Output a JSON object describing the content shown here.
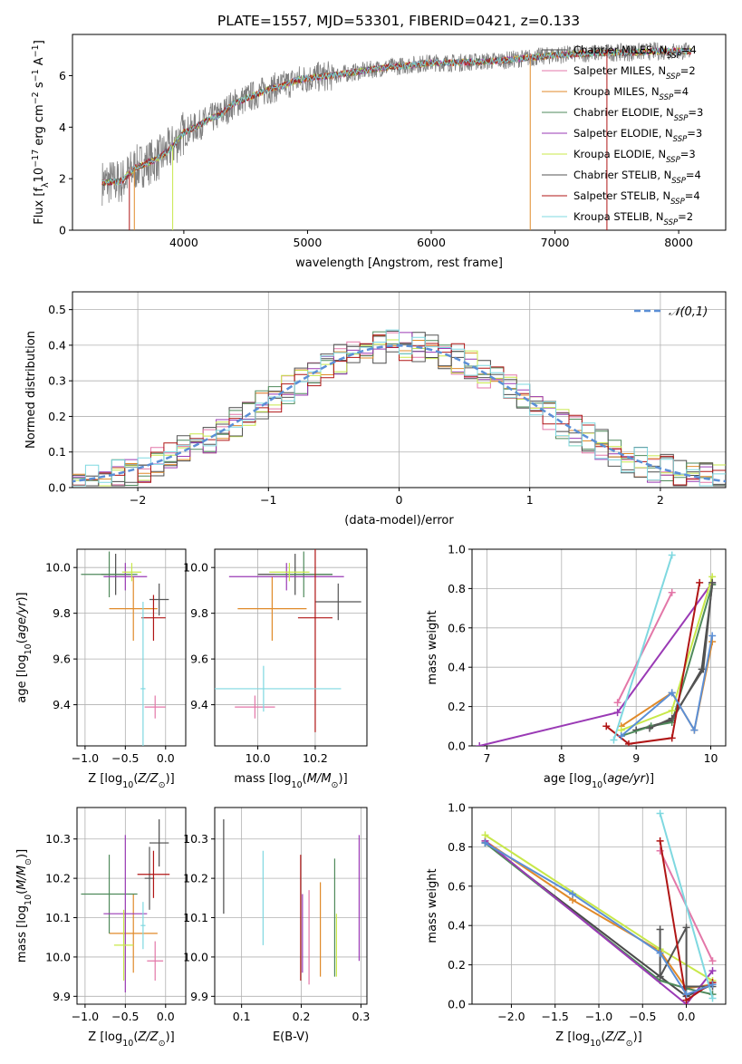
{
  "title": "PLATE=1557, MJD=53301, FIBERID=0421, z=0.133",
  "models": [
    {
      "name": "Chabrier MILES",
      "n": "4",
      "color": "#4a4a4a"
    },
    {
      "name": "Salpeter MILES",
      "n": "2",
      "color": "#e377a8"
    },
    {
      "name": "Kroupa MILES",
      "n": "4",
      "color": "#e08a2a"
    },
    {
      "name": "Chabrier ELODIE",
      "n": "3",
      "color": "#4f8a5b"
    },
    {
      "name": "Salpeter ELODIE",
      "n": "3",
      "color": "#9a3ab5"
    },
    {
      "name": "Kroupa ELODIE",
      "n": "3",
      "color": "#c8e84a"
    },
    {
      "name": "Chabrier STELIB",
      "n": "4",
      "color": "#555555"
    },
    {
      "name": "Salpeter STELIB",
      "n": "4",
      "color": "#b01515"
    },
    {
      "name": "Kroupa STELIB",
      "n": "2",
      "color": "#7fd8e0"
    }
  ],
  "chart_data": [
    {
      "type": "line",
      "id": "spectrum",
      "xlabel": "wavelength [Angstrom, rest frame]",
      "ylabel": "Flux [f_λ 10^-17 erg cm^-2 s^-1 A^-1]",
      "xlim": [
        3100,
        8380
      ],
      "ylim": [
        0,
        7.6
      ],
      "xticks": [
        4000,
        5000,
        6000,
        7000,
        8000
      ],
      "yticks": [
        0,
        2,
        4,
        6
      ],
      "continuum": [
        [
          3340,
          1.85
        ],
        [
          3500,
          1.9
        ],
        [
          3600,
          2.4
        ],
        [
          3700,
          2.6
        ],
        [
          3800,
          2.8
        ],
        [
          3900,
          3.2
        ],
        [
          3950,
          3.5
        ],
        [
          4000,
          3.8
        ],
        [
          4100,
          4.0
        ],
        [
          4200,
          4.3
        ],
        [
          4300,
          4.5
        ],
        [
          4400,
          4.9
        ],
        [
          4500,
          5.1
        ],
        [
          4600,
          5.3
        ],
        [
          4700,
          5.5
        ],
        [
          4800,
          5.6
        ],
        [
          4900,
          5.8
        ],
        [
          5000,
          5.9
        ],
        [
          5200,
          6.0
        ],
        [
          5400,
          6.15
        ],
        [
          5600,
          6.3
        ],
        [
          5800,
          6.4
        ],
        [
          6000,
          6.5
        ],
        [
          6200,
          6.5
        ],
        [
          6400,
          6.55
        ],
        [
          6600,
          6.6
        ],
        [
          6800,
          6.7
        ],
        [
          7000,
          6.8
        ],
        [
          7200,
          6.85
        ],
        [
          7400,
          6.9
        ],
        [
          7600,
          6.9
        ],
        [
          7800,
          6.95
        ],
        [
          8000,
          6.95
        ],
        [
          8100,
          6.95
        ]
      ]
    },
    {
      "type": "line",
      "id": "residuals",
      "xlabel": "(data-model)/error",
      "ylabel": "Normed distribution",
      "xlim": [
        -2.5,
        2.5
      ],
      "ylim": [
        0,
        0.55
      ],
      "xticks": [
        -2,
        -1,
        0,
        1,
        2
      ],
      "yticks": [
        0.0,
        0.1,
        0.2,
        0.3,
        0.4,
        0.5
      ],
      "legend": "𝒩(0,1)",
      "gaussian_sigma": 1.0
    },
    {
      "type": "scatter",
      "id": "age_vs_Z",
      "xlabel": "Z [log10(Z/Z⊙)]",
      "ylabel": "age  [log10(age/yr)]",
      "xlim": [
        -1.1,
        0.25
      ],
      "ylim": [
        9.22,
        10.08
      ],
      "xticks": [
        -1.0,
        -0.5,
        0.0
      ],
      "yticks": [
        9.4,
        9.6,
        9.8,
        10.0
      ],
      "points": [
        {
          "x": -0.62,
          "y": 9.97,
          "ex": 0.18,
          "ey": 0.09,
          "c": 0
        },
        {
          "x": -0.13,
          "y": 9.39,
          "ex": 0.13,
          "ey": 0.05,
          "c": 1
        },
        {
          "x": -0.4,
          "y": 9.82,
          "ex": 0.3,
          "ey": 0.14,
          "c": 2
        },
        {
          "x": -0.7,
          "y": 9.97,
          "ex": 0.35,
          "ey": 0.1,
          "c": 3
        },
        {
          "x": -0.5,
          "y": 9.96,
          "ex": 0.27,
          "ey": 0.06,
          "c": 4
        },
        {
          "x": -0.42,
          "y": 9.98,
          "ex": 0.12,
          "ey": 0.04,
          "c": 5
        },
        {
          "x": -0.08,
          "y": 9.86,
          "ex": 0.12,
          "ey": 0.07,
          "c": 6
        },
        {
          "x": -0.15,
          "y": 9.78,
          "ex": 0.15,
          "ey": 0.1,
          "c": 7
        },
        {
          "x": -0.28,
          "y": 9.47,
          "ex": 0.03,
          "ey": 0.38,
          "c": 8
        }
      ]
    },
    {
      "type": "scatter",
      "id": "age_vs_mass",
      "xlabel": "mass [log10(M/M⊙)]",
      "ylabel": "",
      "xlim": [
        9.85,
        10.38
      ],
      "ylim": [
        9.22,
        10.08
      ],
      "xticks": [
        10.0,
        10.2
      ],
      "yticks": [
        9.4,
        9.6,
        9.8,
        10.0
      ],
      "points": [
        {
          "x": 10.13,
          "y": 9.97,
          "ex": 0.13,
          "ey": 0.09,
          "c": 0
        },
        {
          "x": 9.99,
          "y": 9.39,
          "ex": 0.07,
          "ey": 0.05,
          "c": 1
        },
        {
          "x": 10.05,
          "y": 9.82,
          "ex": 0.12,
          "ey": 0.14,
          "c": 2
        },
        {
          "x": 10.16,
          "y": 9.97,
          "ex": 0.1,
          "ey": 0.1,
          "c": 3
        },
        {
          "x": 10.1,
          "y": 9.96,
          "ex": 0.2,
          "ey": 0.06,
          "c": 4
        },
        {
          "x": 10.11,
          "y": 9.98,
          "ex": 0.07,
          "ey": 0.04,
          "c": 5
        },
        {
          "x": 10.28,
          "y": 9.85,
          "ex": 0.08,
          "ey": 0.08,
          "c": 6
        },
        {
          "x": 10.2,
          "y": 9.78,
          "ex": 0.06,
          "ey": 0.5,
          "c": 7
        },
        {
          "x": 10.02,
          "y": 9.47,
          "ex": 0.27,
          "ey": 0.1,
          "c": 8
        }
      ]
    },
    {
      "type": "line",
      "id": "massweight_vs_age",
      "xlabel": "age  [log10(age/yr)]",
      "ylabel": "mass weight",
      "xlim": [
        6.8,
        10.2
      ],
      "ylim": [
        0,
        1.0
      ],
      "xticks": [
        7,
        8,
        9,
        10
      ],
      "yticks": [
        0.0,
        0.2,
        0.4,
        0.6,
        0.8,
        1.0
      ],
      "series": [
        {
          "c": 0,
          "pts": [
            [
              9.0,
              0.08
            ],
            [
              9.48,
              0.13
            ],
            [
              9.88,
              0.39
            ],
            [
              10.02,
              0.82
            ]
          ]
        },
        {
          "c": 1,
          "pts": [
            [
              8.75,
              0.22
            ],
            [
              9.48,
              0.78
            ]
          ]
        },
        {
          "c": 2,
          "pts": [
            [
              8.8,
              0.1
            ],
            [
              9.48,
              0.27
            ],
            [
              9.78,
              0.08
            ],
            [
              10.02,
              0.53
            ]
          ]
        },
        {
          "c": 3,
          "pts": [
            [
              8.8,
              0.05
            ],
            [
              9.2,
              0.1
            ],
            [
              9.48,
              0.12
            ],
            [
              10.02,
              0.82
            ]
          ]
        },
        {
          "c": 4,
          "pts": [
            [
              6.9,
              0.0
            ],
            [
              8.75,
              0.17
            ],
            [
              10.02,
              0.83
            ]
          ]
        },
        {
          "c": 5,
          "pts": [
            [
              8.8,
              0.08
            ],
            [
              9.48,
              0.18
            ],
            [
              10.02,
              0.86
            ]
          ]
        },
        {
          "c": 6,
          "pts": [
            [
              9.18,
              0.09
            ],
            [
              9.48,
              0.14
            ],
            [
              9.9,
              0.39
            ],
            [
              10.02,
              0.83
            ]
          ]
        },
        {
          "c": 7,
          "pts": [
            [
              8.6,
              0.1
            ],
            [
              8.9,
              0.01
            ],
            [
              9.48,
              0.04
            ],
            [
              9.85,
              0.83
            ]
          ]
        },
        {
          "c": 8,
          "pts": [
            [
              8.7,
              0.03
            ],
            [
              9.48,
              0.97
            ]
          ]
        }
      ],
      "extra_blue": {
        "pts": [
          [
            8.8,
            0.05
          ],
          [
            9.48,
            0.27
          ],
          [
            9.78,
            0.08
          ],
          [
            10.02,
            0.56
          ]
        ]
      }
    },
    {
      "type": "scatter",
      "id": "mass_vs_Z",
      "xlabel": "Z [log10(Z/Z⊙)]",
      "ylabel": "mass [log10(M/M⊙)]",
      "xlim": [
        -1.1,
        0.25
      ],
      "ylim": [
        9.88,
        10.38
      ],
      "xticks": [
        -1.0,
        -0.5,
        0.0
      ],
      "yticks": [
        9.9,
        10.0,
        10.1,
        10.2,
        10.3
      ],
      "points": [
        {
          "x": -0.08,
          "y": 10.29,
          "ex": 0.12,
          "ey": 0.06,
          "c": 0
        },
        {
          "x": -0.13,
          "y": 9.99,
          "ex": 0.1,
          "ey": 0.05,
          "c": 1
        },
        {
          "x": -0.4,
          "y": 10.06,
          "ex": 0.3,
          "ey": 0.1,
          "c": 2
        },
        {
          "x": -0.7,
          "y": 10.16,
          "ex": 0.35,
          "ey": 0.1,
          "c": 3
        },
        {
          "x": -0.5,
          "y": 10.11,
          "ex": 0.27,
          "ey": 0.2,
          "c": 4
        },
        {
          "x": -0.52,
          "y": 10.03,
          "ex": 0.12,
          "ey": 0.09,
          "c": 5
        },
        {
          "x": -0.2,
          "y": 10.2,
          "ex": 0.06,
          "ey": 0.08,
          "c": 6
        },
        {
          "x": -0.15,
          "y": 10.21,
          "ex": 0.2,
          "ey": 0.06,
          "c": 7
        },
        {
          "x": -0.28,
          "y": 10.08,
          "ex": 0.03,
          "ey": 0.06,
          "c": 8
        }
      ]
    },
    {
      "type": "scatter",
      "id": "mass_vs_ebv",
      "xlabel": "E(B-V)",
      "ylabel": "",
      "xlim": [
        0.055,
        0.31
      ],
      "ylim": [
        9.88,
        10.38
      ],
      "xticks": [
        0.1,
        0.2,
        0.3
      ],
      "yticks": [
        9.9,
        10.0,
        10.1,
        10.2,
        10.3
      ],
      "points": [
        {
          "x": 0.07,
          "y": 10.23,
          "ey": 0.12,
          "c": 0
        },
        {
          "x": 0.136,
          "y": 10.15,
          "ey": 0.12,
          "c": 8
        },
        {
          "x": 0.199,
          "y": 10.1,
          "ey": 0.16,
          "c": 7
        },
        {
          "x": 0.202,
          "y": 10.06,
          "ey": 0.1,
          "c": 4
        },
        {
          "x": 0.213,
          "y": 10.05,
          "ey": 0.12,
          "c": 1
        },
        {
          "x": 0.232,
          "y": 10.07,
          "ey": 0.12,
          "c": 2
        },
        {
          "x": 0.256,
          "y": 10.1,
          "ey": 0.15,
          "c": 3
        },
        {
          "x": 0.259,
          "y": 10.03,
          "ey": 0.08,
          "c": 5
        },
        {
          "x": 0.297,
          "y": 10.15,
          "ey": 0.16,
          "c": 4
        }
      ]
    },
    {
      "type": "line",
      "id": "massweight_vs_Z",
      "xlabel": "Z [log10(Z/Z⊙)]",
      "ylabel": "mass weight",
      "xlim": [
        -2.45,
        0.45
      ],
      "ylim": [
        0,
        1.0
      ],
      "xticks": [
        -2.0,
        -1.5,
        -1.0,
        -0.5,
        0.0
      ],
      "yticks": [
        0.0,
        0.2,
        0.4,
        0.6,
        0.8,
        1.0
      ],
      "series": [
        {
          "c": 0,
          "pts": [
            [
              -2.3,
              0.82
            ],
            [
              -0.3,
              0.14
            ],
            [
              0.0,
              0.04
            ],
            [
              0.3,
              0.1
            ]
          ]
        },
        {
          "c": 1,
          "pts": [
            [
              -0.3,
              0.78
            ],
            [
              0.3,
              0.22
            ]
          ]
        },
        {
          "c": 2,
          "pts": [
            [
              -2.3,
              0.83
            ],
            [
              -1.3,
              0.53
            ],
            [
              -0.3,
              0.27
            ],
            [
              0.0,
              0.08
            ],
            [
              0.3,
              0.1
            ]
          ]
        },
        {
          "c": 3,
          "pts": [
            [
              -2.3,
              0.82
            ],
            [
              -0.3,
              0.12
            ],
            [
              0.0,
              0.08
            ],
            [
              0.3,
              0.05
            ]
          ]
        },
        {
          "c": 4,
          "pts": [
            [
              -2.3,
              0.83
            ],
            [
              0.0,
              0.0
            ],
            [
              0.3,
              0.17
            ]
          ]
        },
        {
          "c": 5,
          "pts": [
            [
              -2.3,
              0.86
            ],
            [
              -0.3,
              0.28
            ],
            [
              0.3,
              0.12
            ]
          ]
        },
        {
          "c": 6,
          "pts": [
            [
              -0.3,
              0.38
            ],
            [
              -0.3,
              0.14
            ],
            [
              0.0,
              0.39
            ],
            [
              0.0,
              0.09
            ],
            [
              0.3,
              0.09
            ]
          ]
        },
        {
          "c": 7,
          "pts": [
            [
              -0.3,
              0.83
            ],
            [
              0.0,
              0.02
            ],
            [
              0.3,
              0.11
            ]
          ]
        },
        {
          "c": 8,
          "pts": [
            [
              -0.3,
              0.97
            ],
            [
              0.3,
              0.03
            ]
          ]
        }
      ],
      "extra_blue": {
        "pts": [
          [
            -2.3,
            0.82
          ],
          [
            -1.3,
            0.56
          ],
          [
            -0.3,
            0.26
          ],
          [
            0.0,
            0.05
          ],
          [
            0.3,
            0.1
          ]
        ]
      }
    }
  ]
}
